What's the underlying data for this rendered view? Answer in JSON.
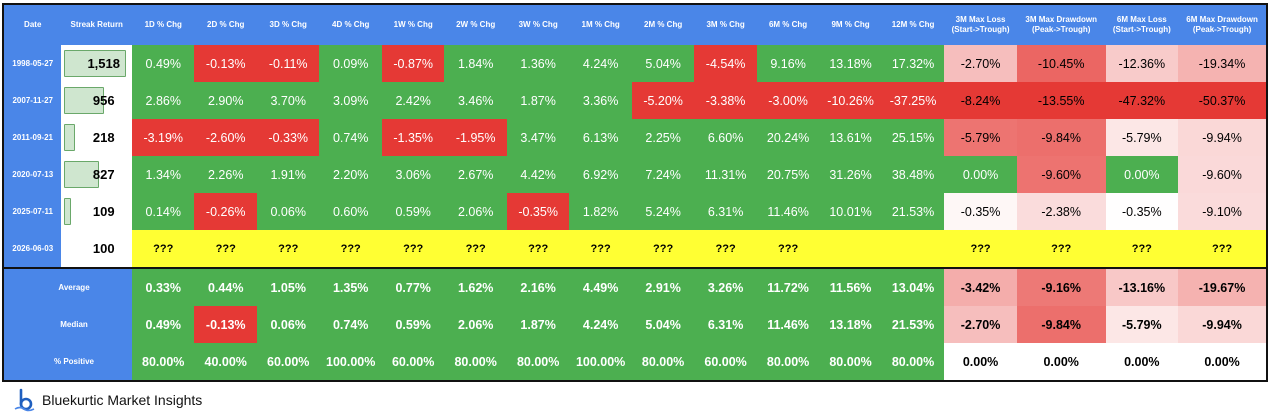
{
  "headers": [
    "Date",
    "Streak Return",
    "1D % Chg",
    "2D % Chg",
    "3D % Chg",
    "4D % Chg",
    "1W % Chg",
    "2W % Chg",
    "3W % Chg",
    "1M % Chg",
    "2M % Chg",
    "3M % Chg",
    "6M % Chg",
    "9M % Chg",
    "12M % Chg",
    "3M Max Loss (Start->Trough)",
    "3M Max Drawdown (Peak->Trough)",
    "6M Max Loss (Start->Trough)",
    "6M Max Drawdown (Peak->Trough)"
  ],
  "rows": [
    {
      "date": "1998-05-27",
      "streak": "1,518",
      "streak_fill": 1.0,
      "values": [
        "0.49%",
        "-0.13%",
        "-0.11%",
        "0.09%",
        "-0.87%",
        "1.84%",
        "1.36%",
        "4.24%",
        "5.04%",
        "-4.54%",
        "9.16%",
        "13.18%",
        "17.32%",
        "-2.70%",
        "-10.45%",
        "-12.36%",
        "-19.34%"
      ]
    },
    {
      "date": "2007-11-27",
      "streak": "956",
      "streak_fill": 0.63,
      "values": [
        "2.86%",
        "2.90%",
        "3.70%",
        "3.09%",
        "2.42%",
        "3.46%",
        "1.87%",
        "3.36%",
        "-5.20%",
        "-3.38%",
        "-3.00%",
        "-10.26%",
        "-37.25%",
        "-8.24%",
        "-13.55%",
        "-47.32%",
        "-50.37%"
      ]
    },
    {
      "date": "2011-09-21",
      "streak": "218",
      "streak_fill": 0.14,
      "values": [
        "-3.19%",
        "-2.60%",
        "-0.33%",
        "0.74%",
        "-1.35%",
        "-1.95%",
        "3.47%",
        "6.13%",
        "2.25%",
        "6.60%",
        "20.24%",
        "13.61%",
        "25.15%",
        "-5.79%",
        "-9.84%",
        "-5.79%",
        "-9.94%"
      ]
    },
    {
      "date": "2020-07-13",
      "streak": "827",
      "streak_fill": 0.54,
      "values": [
        "1.34%",
        "2.26%",
        "1.91%",
        "2.20%",
        "3.06%",
        "2.67%",
        "4.42%",
        "6.92%",
        "7.24%",
        "11.31%",
        "20.75%",
        "31.26%",
        "38.48%",
        "0.00%",
        "-9.60%",
        "0.00%",
        "-9.60%"
      ]
    },
    {
      "date": "2025-07-11",
      "streak": "109",
      "streak_fill": 0.07,
      "values": [
        "0.14%",
        "-0.26%",
        "0.06%",
        "0.60%",
        "0.59%",
        "2.06%",
        "-0.35%",
        "1.82%",
        "5.24%",
        "6.31%",
        "11.46%",
        "10.01%",
        "21.53%",
        "-0.35%",
        "-2.38%",
        "-0.35%",
        "-9.10%"
      ]
    },
    {
      "date": "2026-06-03",
      "streak": "100",
      "streak_fill": 0.0,
      "values": [
        "???",
        "???",
        "???",
        "???",
        "???",
        "???",
        "???",
        "???",
        "???",
        "???",
        "???",
        "",
        "",
        "???",
        "???",
        "???",
        "???"
      ]
    }
  ],
  "summary": [
    {
      "label": "Average",
      "values": [
        "0.33%",
        "0.44%",
        "1.05%",
        "1.35%",
        "0.77%",
        "1.62%",
        "2.16%",
        "4.49%",
        "2.91%",
        "3.26%",
        "11.72%",
        "11.56%",
        "13.04%",
        "-3.42%",
        "-9.16%",
        "-13.16%",
        "-19.67%"
      ]
    },
    {
      "label": "Median",
      "values": [
        "0.49%",
        "-0.13%",
        "0.06%",
        "0.74%",
        "0.59%",
        "2.06%",
        "1.87%",
        "4.24%",
        "5.04%",
        "6.31%",
        "11.46%",
        "13.18%",
        "21.53%",
        "-2.70%",
        "-9.84%",
        "-5.79%",
        "-9.94%"
      ]
    },
    {
      "label": "% Positive",
      "values": [
        "80.00%",
        "40.00%",
        "60.00%",
        "100.00%",
        "60.00%",
        "80.00%",
        "80.00%",
        "100.00%",
        "80.00%",
        "60.00%",
        "80.00%",
        "80.00%",
        "80.00%",
        "0.00%",
        "0.00%",
        "0.00%",
        "0.00%"
      ]
    }
  ],
  "colors": {
    "header_blue": "#4a86e8",
    "positive_green": "#4caf50",
    "negative_red": "#e53935",
    "pending_yellow": "#ffff33"
  },
  "footer": {
    "brand": "Bluekurtic Market Insights",
    "logo_icon": "bluekurtic-logo-icon"
  }
}
